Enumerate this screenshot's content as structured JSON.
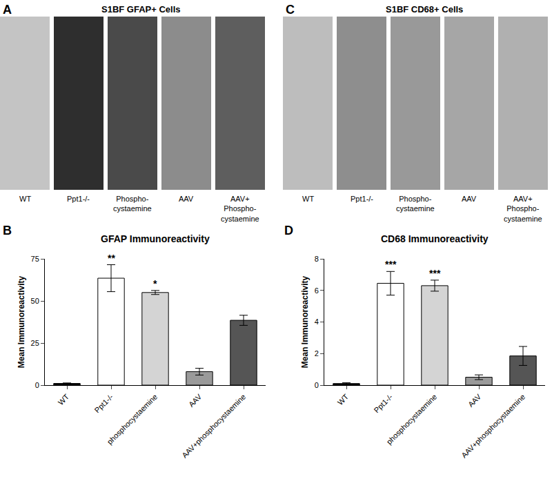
{
  "panels": [
    {
      "letter": "A",
      "title": "S1BF GFAP+ Cells",
      "labels": [
        [
          "WT"
        ],
        [
          "Ppt1-/-"
        ],
        [
          "Phospho-",
          "cystaemine"
        ],
        [
          "AAV"
        ],
        [
          "AAV+",
          "Phospho-",
          "cystaemine"
        ]
      ]
    },
    {
      "letter": "C",
      "title": "S1BF CD68+ Cells",
      "labels": [
        [
          "WT"
        ],
        [
          "Ppt1-/-"
        ],
        [
          "Phospho-",
          "cystaemine"
        ],
        [
          "AAV"
        ],
        [
          "AAV+",
          "Phospho-",
          "cystaemine"
        ]
      ]
    }
  ],
  "chart_data": [
    {
      "panel": "B",
      "type": "bar",
      "title": "GFAP Immunoreactivity",
      "y_label": "Mean Immunoreactivity",
      "categories": [
        "WT",
        "Ppt1-/-",
        "phosphocystaemine",
        "AAV",
        "AAV+phosphocystaemine"
      ],
      "values": [
        1,
        63.5,
        55,
        8,
        38.5
      ],
      "errors": [
        0.3,
        8,
        1.2,
        2,
        3
      ],
      "colors": [
        "#000000",
        "#ffffff",
        "#d4d4d4",
        "#9a9a9a",
        "#555555"
      ],
      "ylim": [
        0,
        75
      ],
      "yticks": [
        0,
        25,
        50,
        75
      ],
      "grid": false,
      "annotations": [
        {
          "category": "Ppt1-/-",
          "text": "**"
        },
        {
          "category": "phosphocystaemine",
          "text": "*"
        }
      ]
    },
    {
      "panel": "D",
      "type": "bar",
      "title": "CD68 Immunoreactivity",
      "y_label": "Mean Immunoreactivity",
      "categories": [
        "WT",
        "Ppt1-/-",
        "phosphocystaemine",
        "AAV",
        "AAV+phosphocystaemine"
      ],
      "values": [
        0.1,
        6.45,
        6.3,
        0.5,
        1.85
      ],
      "errors": [
        0.05,
        0.75,
        0.35,
        0.15,
        0.6
      ],
      "colors": [
        "#000000",
        "#ffffff",
        "#d4d4d4",
        "#9a9a9a",
        "#555555"
      ],
      "ylim": [
        0,
        8
      ],
      "yticks": [
        0,
        2,
        4,
        6,
        8
      ],
      "grid": false,
      "annotations": [
        {
          "category": "Ppt1-/-",
          "text": "***"
        },
        {
          "category": "phosphocystaemine",
          "text": "***"
        }
      ]
    }
  ]
}
